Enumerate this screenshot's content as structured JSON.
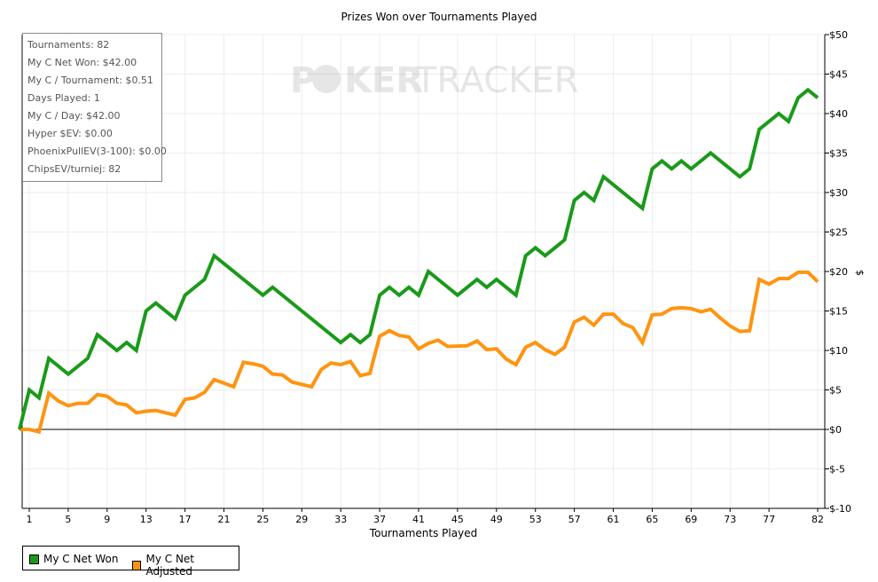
{
  "chart_data": {
    "type": "line",
    "title": "Prizes Won over Tournaments Played",
    "xlabel": "Tournaments Played",
    "ylabel": "$",
    "xlim": [
      0,
      82
    ],
    "ylim": [
      -10,
      50
    ],
    "x_ticks": [
      1,
      5,
      9,
      13,
      17,
      21,
      25,
      29,
      33,
      37,
      41,
      45,
      49,
      53,
      57,
      61,
      65,
      69,
      73,
      77,
      82
    ],
    "y_ticks": [
      {
        "value": 50,
        "label": "$50"
      },
      {
        "value": 45,
        "label": "$45"
      },
      {
        "value": 40,
        "label": "$40"
      },
      {
        "value": 35,
        "label": "$35"
      },
      {
        "value": 30,
        "label": "$30"
      },
      {
        "value": 25,
        "label": "$25"
      },
      {
        "value": 20,
        "label": "$20"
      },
      {
        "value": 15,
        "label": "$15"
      },
      {
        "value": 10,
        "label": "$10"
      },
      {
        "value": 5,
        "label": "$5"
      },
      {
        "value": 0,
        "label": "$0"
      },
      {
        "value": -5,
        "label": "$-5"
      },
      {
        "value": -10,
        "label": "$-10"
      }
    ],
    "grid": true,
    "legend_position": "bottom-left",
    "series": [
      {
        "name": "My C Net Won",
        "color": "#1a9a1a",
        "points": [
          [
            0,
            0
          ],
          [
            1,
            5
          ],
          [
            2,
            4
          ],
          [
            3,
            9
          ],
          [
            5,
            7
          ],
          [
            7,
            9
          ],
          [
            8,
            12
          ],
          [
            10,
            10
          ],
          [
            11,
            11
          ],
          [
            12,
            10
          ],
          [
            13,
            15
          ],
          [
            14,
            16
          ],
          [
            16,
            14
          ],
          [
            17,
            17
          ],
          [
            19,
            19
          ],
          [
            20,
            22
          ],
          [
            25,
            17
          ],
          [
            26,
            18
          ],
          [
            33,
            11
          ],
          [
            34,
            12
          ],
          [
            35,
            11
          ],
          [
            36,
            12
          ],
          [
            37,
            17
          ],
          [
            38,
            18
          ],
          [
            39,
            17
          ],
          [
            40,
            18
          ],
          [
            41,
            17
          ],
          [
            42,
            20
          ],
          [
            45,
            17
          ],
          [
            47,
            19
          ],
          [
            48,
            18
          ],
          [
            49,
            19
          ],
          [
            51,
            17
          ],
          [
            52,
            22
          ],
          [
            53,
            23
          ],
          [
            54,
            22
          ],
          [
            56,
            24
          ],
          [
            57,
            29
          ],
          [
            58,
            30
          ],
          [
            59,
            29
          ],
          [
            60,
            32
          ],
          [
            64,
            28
          ],
          [
            65,
            33
          ],
          [
            66,
            34
          ],
          [
            67,
            33
          ],
          [
            68,
            34
          ],
          [
            69,
            33
          ],
          [
            71,
            35
          ],
          [
            74,
            32
          ],
          [
            75,
            33
          ],
          [
            76,
            38
          ],
          [
            78,
            40
          ],
          [
            79,
            39
          ],
          [
            80,
            42
          ],
          [
            81,
            43
          ],
          [
            82,
            42
          ]
        ]
      },
      {
        "name": "My C Net Adjusted",
        "color": "#ff9411",
        "points": [
          [
            0,
            0
          ],
          [
            1,
            0
          ],
          [
            2,
            -0.3
          ],
          [
            3,
            4.6
          ],
          [
            4,
            3.6
          ],
          [
            5,
            3
          ],
          [
            6,
            3.3
          ],
          [
            7,
            3.3
          ],
          [
            8,
            4.4
          ],
          [
            9,
            4.2
          ],
          [
            10,
            3.3
          ],
          [
            11,
            3.1
          ],
          [
            12,
            2.1
          ],
          [
            13,
            2.3
          ],
          [
            14,
            2.4
          ],
          [
            15,
            2.1
          ],
          [
            16,
            1.8
          ],
          [
            17,
            3.8
          ],
          [
            18,
            4
          ],
          [
            19,
            4.7
          ],
          [
            20,
            6.3
          ],
          [
            22,
            5.4
          ],
          [
            23,
            8.5
          ],
          [
            24,
            8.3
          ],
          [
            25,
            8
          ],
          [
            26,
            7
          ],
          [
            27,
            6.9
          ],
          [
            28,
            6
          ],
          [
            30,
            5.4
          ],
          [
            31,
            7.6
          ],
          [
            32,
            8.4
          ],
          [
            33,
            8.2
          ],
          [
            34,
            8.6
          ],
          [
            35,
            6.8
          ],
          [
            36,
            7.1
          ],
          [
            37,
            11.8
          ],
          [
            38,
            12.5
          ],
          [
            39,
            11.9
          ],
          [
            40,
            11.7
          ],
          [
            41,
            10.2
          ],
          [
            42,
            10.9
          ],
          [
            43,
            11.3
          ],
          [
            44,
            10.5
          ],
          [
            46,
            10.6
          ],
          [
            47,
            11.2
          ],
          [
            48,
            10.1
          ],
          [
            49,
            10.2
          ],
          [
            50,
            8.9
          ],
          [
            51,
            8.2
          ],
          [
            52,
            10.4
          ],
          [
            53,
            11
          ],
          [
            54,
            10.1
          ],
          [
            55,
            9.5
          ],
          [
            56,
            10.4
          ],
          [
            57,
            13.6
          ],
          [
            58,
            14.2
          ],
          [
            59,
            13.2
          ],
          [
            60,
            14.6
          ],
          [
            61,
            14.6
          ],
          [
            62,
            13.4
          ],
          [
            63,
            12.9
          ],
          [
            64,
            11
          ],
          [
            65,
            14.5
          ],
          [
            66,
            14.6
          ],
          [
            67,
            15.3
          ],
          [
            68,
            15.4
          ],
          [
            69,
            15.3
          ],
          [
            70,
            14.9
          ],
          [
            71,
            15.2
          ],
          [
            72,
            14.1
          ],
          [
            73,
            13.1
          ],
          [
            74,
            12.4
          ],
          [
            75,
            12.5
          ],
          [
            76,
            19
          ],
          [
            77,
            18.4
          ],
          [
            78,
            19.1
          ],
          [
            79,
            19.1
          ],
          [
            80,
            19.9
          ],
          [
            81,
            19.9
          ],
          [
            82,
            18.7
          ]
        ]
      }
    ]
  },
  "stats": [
    "Tournaments: 82",
    "My C Net Won: $42.00",
    "My C / Tournament: $0.51",
    "Days Played: 1",
    "My C / Day: $42.00",
    "Hyper $EV: $0.00",
    "PhoenixPullEV(3-100): $0.00",
    "ChipsEV/turniej: 82"
  ],
  "watermark": {
    "left": "P",
    "center": "KER",
    "right": "TRACKER"
  }
}
